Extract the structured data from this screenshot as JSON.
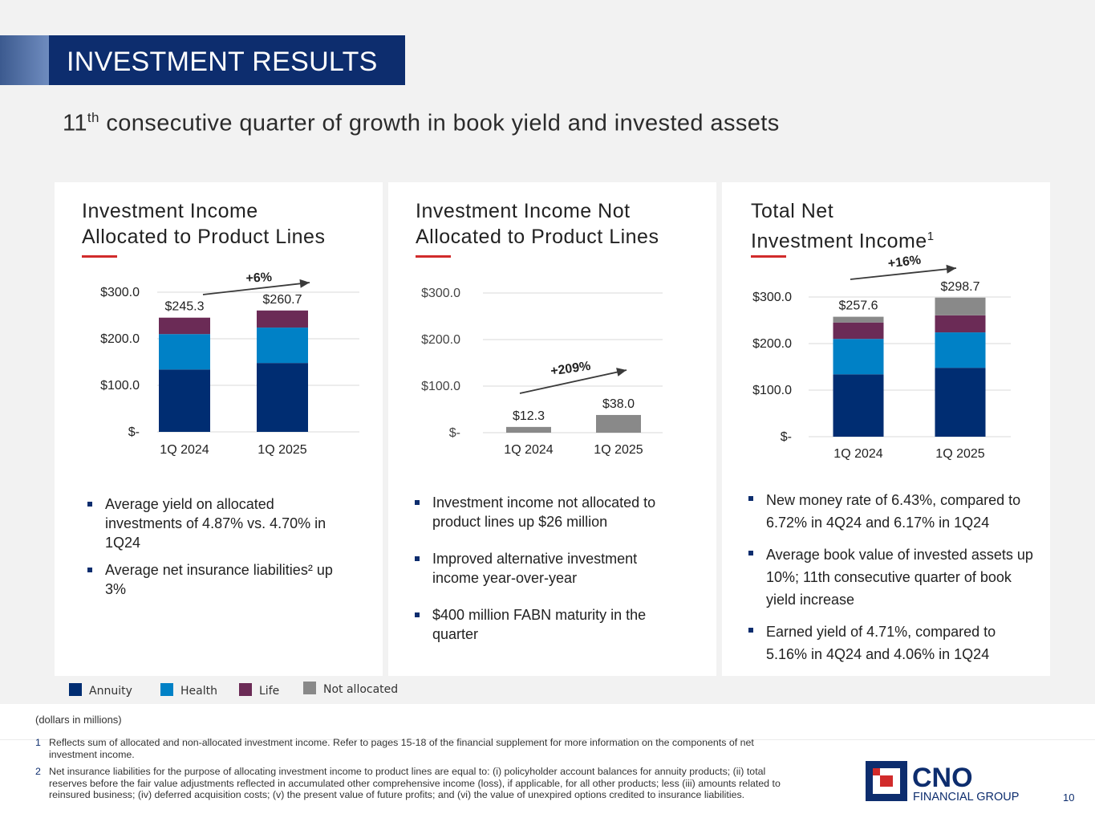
{
  "header": {
    "title": "INVESTMENT RESULTS"
  },
  "subtitle": {
    "prefix": "11",
    "sup": "th",
    "text": " consecutive quarter of growth in book yield and invested assets"
  },
  "colors": {
    "annuity": "#002d72",
    "health": "#0081c6",
    "life": "#6b2b56",
    "not_allocated": "#898989",
    "navy": "#0d2d6e",
    "red": "#d12b2b",
    "grid": "#d9d9d9"
  },
  "panels": [
    {
      "title_line1": "Investment Income",
      "title_line2": "Allocated to Product Lines",
      "title_sup": "",
      "bullets": [
        "Average yield on allocated investments of 4.87% vs. 4.70% in 1Q24",
        "Average net insurance liabilities² up 3%"
      ]
    },
    {
      "title_line1": "Investment Income Not",
      "title_line2": "Allocated to Product Lines",
      "title_sup": "",
      "bullets": [
        "Investment income not allocated to product lines up $26 million",
        "Improved alternative investment income year-over-year",
        "$400 million FABN maturity in the quarter"
      ]
    },
    {
      "title_line1": "Total Net",
      "title_line2": "Investment Income",
      "title_sup": "1",
      "bullets": [
        "New money rate of 6.43%, compared to 6.72% in 4Q24 and 6.17% in 1Q24",
        "Average book value of invested assets up 10%; 11th consecutive quarter of book yield increase",
        "Earned yield of 4.71%, compared to 5.16% in 4Q24 and 4.06% in 1Q24"
      ]
    }
  ],
  "chart_data": [
    {
      "type": "bar",
      "stacked": true,
      "title": "Investment Income Allocated to Product Lines",
      "categories": [
        "1Q 2024",
        "1Q 2025"
      ],
      "series": [
        {
          "name": "Annuity",
          "values": [
            134,
            148
          ]
        },
        {
          "name": "Health",
          "values": [
            76,
            76
          ]
        },
        {
          "name": "Life",
          "values": [
            35.3,
            36.7
          ]
        }
      ],
      "totals": [
        245.3,
        260.7
      ],
      "total_labels": [
        "$245.3",
        "$260.7"
      ],
      "growth_label": "+6%",
      "ylim": [
        0,
        300
      ],
      "yticks": [
        0,
        100,
        200,
        300
      ],
      "ytick_labels": [
        "$-",
        "$100.0",
        "$200.0",
        "$300.0"
      ],
      "grid": true
    },
    {
      "type": "bar",
      "stacked": true,
      "title": "Investment Income Not Allocated to Product Lines",
      "categories": [
        "1Q 2024",
        "1Q 2025"
      ],
      "series": [
        {
          "name": "Not allocated",
          "values": [
            12.3,
            38.0
          ]
        }
      ],
      "totals": [
        12.3,
        38.0
      ],
      "total_labels": [
        "$12.3",
        "$38.0"
      ],
      "growth_label": "+209%",
      "ylim": [
        0,
        300
      ],
      "yticks": [
        0,
        100,
        200,
        300
      ],
      "ytick_labels": [
        "$-",
        "$100.0",
        "$200.0",
        "$300.0"
      ],
      "grid": true
    },
    {
      "type": "bar",
      "stacked": true,
      "title": "Total Net Investment Income",
      "categories": [
        "1Q 2024",
        "1Q 2025"
      ],
      "series": [
        {
          "name": "Annuity",
          "values": [
            134,
            148
          ]
        },
        {
          "name": "Health",
          "values": [
            76,
            76
          ]
        },
        {
          "name": "Life",
          "values": [
            35.3,
            36.7
          ]
        },
        {
          "name": "Not allocated",
          "values": [
            12.3,
            38.0
          ]
        }
      ],
      "totals": [
        257.6,
        298.7
      ],
      "total_labels": [
        "$257.6",
        "$298.7"
      ],
      "growth_label": "+16%",
      "ylim": [
        0,
        300
      ],
      "yticks": [
        0,
        100,
        200,
        300
      ],
      "ytick_labels": [
        "$-",
        "$100.0",
        "$200.0",
        "$300.0"
      ],
      "grid": true
    }
  ],
  "legend": {
    "annuity": "Annuity",
    "health": "Health",
    "life": "Life",
    "not_allocated": "Not allocated"
  },
  "footer": {
    "units_note": "(dollars in millions)",
    "footnotes": [
      {
        "num": "1",
        "text": "Reflects sum of allocated and non-allocated investment income. Refer to pages 15-18 of the financial supplement for more information on the components of net investment income."
      },
      {
        "num": "2",
        "text": "Net insurance liabilities for the purpose of allocating investment income to product lines are equal to: (i) policyholder account balances for annuity products; (ii) total reserves before the fair value adjustments reflected in accumulated other comprehensive income (loss), if applicable, for all other products; less (iii) amounts related to reinsured business; (iv) deferred acquisition costs; (v) the present value of future profits; and (vi) the value of unexpired options credited to insurance liabilities."
      }
    ]
  },
  "logo": {
    "name": "CNO",
    "subtext": "FINANCIAL GROUP"
  },
  "page_number": "10"
}
